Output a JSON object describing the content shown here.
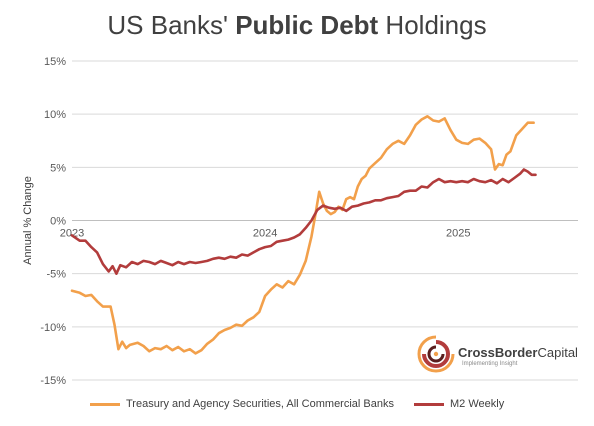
{
  "title": {
    "prefix": "US Banks' ",
    "emphasis": "Public Debt",
    "suffix": " Holdings"
  },
  "brand": {
    "name_bold": "CrossBorder",
    "name_rest": "Capital",
    "tagline": "Implementing Insight"
  },
  "colors": {
    "treasury": "#F2A04B",
    "m2": "#B23C3C",
    "grid": "#D9D9D9",
    "zero_line": "#BFBFBF"
  },
  "chart_data": {
    "type": "line",
    "title": "US Banks' Public Debt Holdings",
    "xlabel": "",
    "ylabel": "Annual % Change",
    "ylim": [
      -15,
      15
    ],
    "yticks": [
      15,
      10,
      5,
      0,
      -5,
      -10,
      -15
    ],
    "ytick_labels": [
      "15%",
      "10%",
      "5%",
      "0%",
      "-5%",
      "-10%",
      "-15%"
    ],
    "xlim": [
      2023.0,
      2025.62
    ],
    "xticks": [
      2023,
      2024,
      2025
    ],
    "xtick_labels": [
      "2023",
      "2024",
      "2025"
    ],
    "grid": true,
    "legend_position": "bottom",
    "series": [
      {
        "name": "Treasury and Agency Securities, All Commercial Banks",
        "color": "#F2A04B",
        "points": [
          [
            2023.0,
            -6.6
          ],
          [
            2023.04,
            -6.8
          ],
          [
            2023.07,
            -7.1
          ],
          [
            2023.1,
            -7.0
          ],
          [
            2023.13,
            -7.6
          ],
          [
            2023.16,
            -8.1
          ],
          [
            2023.2,
            -8.1
          ],
          [
            2023.22,
            -9.8
          ],
          [
            2023.24,
            -12.1
          ],
          [
            2023.26,
            -11.4
          ],
          [
            2023.28,
            -12.0
          ],
          [
            2023.3,
            -11.7
          ],
          [
            2023.34,
            -11.5
          ],
          [
            2023.37,
            -11.8
          ],
          [
            2023.4,
            -12.3
          ],
          [
            2023.43,
            -12.0
          ],
          [
            2023.46,
            -12.1
          ],
          [
            2023.49,
            -11.8
          ],
          [
            2023.52,
            -12.2
          ],
          [
            2023.55,
            -11.9
          ],
          [
            2023.58,
            -12.3
          ],
          [
            2023.61,
            -12.1
          ],
          [
            2023.64,
            -12.5
          ],
          [
            2023.67,
            -12.2
          ],
          [
            2023.7,
            -11.6
          ],
          [
            2023.73,
            -11.2
          ],
          [
            2023.76,
            -10.6
          ],
          [
            2023.79,
            -10.3
          ],
          [
            2023.82,
            -10.1
          ],
          [
            2023.85,
            -9.8
          ],
          [
            2023.88,
            -9.9
          ],
          [
            2023.91,
            -9.4
          ],
          [
            2023.94,
            -9.1
          ],
          [
            2023.97,
            -8.6
          ],
          [
            2024.0,
            -7.1
          ],
          [
            2024.03,
            -6.5
          ],
          [
            2024.06,
            -6.0
          ],
          [
            2024.09,
            -6.3
          ],
          [
            2024.12,
            -5.7
          ],
          [
            2024.15,
            -6.0
          ],
          [
            2024.18,
            -5.1
          ],
          [
            2024.21,
            -3.8
          ],
          [
            2024.24,
            -1.5
          ],
          [
            2024.26,
            0.5
          ],
          [
            2024.28,
            2.7
          ],
          [
            2024.3,
            1.6
          ],
          [
            2024.32,
            0.9
          ],
          [
            2024.34,
            0.6
          ],
          [
            2024.36,
            0.8
          ],
          [
            2024.38,
            1.3
          ],
          [
            2024.4,
            1.0
          ],
          [
            2024.42,
            2.0
          ],
          [
            2024.44,
            2.2
          ],
          [
            2024.46,
            2.0
          ],
          [
            2024.48,
            3.2
          ],
          [
            2024.5,
            3.9
          ],
          [
            2024.52,
            4.2
          ],
          [
            2024.54,
            4.9
          ],
          [
            2024.57,
            5.4
          ],
          [
            2024.6,
            5.9
          ],
          [
            2024.63,
            6.7
          ],
          [
            2024.66,
            7.2
          ],
          [
            2024.69,
            7.5
          ],
          [
            2024.72,
            7.2
          ],
          [
            2024.75,
            8.0
          ],
          [
            2024.78,
            9.0
          ],
          [
            2024.81,
            9.5
          ],
          [
            2024.84,
            9.8
          ],
          [
            2024.87,
            9.4
          ],
          [
            2024.9,
            9.3
          ],
          [
            2024.93,
            9.6
          ],
          [
            2024.96,
            8.5
          ],
          [
            2024.99,
            7.6
          ],
          [
            2025.02,
            7.3
          ],
          [
            2025.05,
            7.2
          ],
          [
            2025.08,
            7.6
          ],
          [
            2025.11,
            7.7
          ],
          [
            2025.14,
            7.3
          ],
          [
            2025.17,
            6.7
          ],
          [
            2025.19,
            4.8
          ],
          [
            2025.21,
            5.3
          ],
          [
            2025.23,
            5.2
          ],
          [
            2025.25,
            6.2
          ],
          [
            2025.27,
            6.5
          ],
          [
            2025.3,
            8.0
          ],
          [
            2025.33,
            8.6
          ],
          [
            2025.36,
            9.2
          ],
          [
            2025.39,
            9.2
          ]
        ]
      },
      {
        "name": "M2 Weekly",
        "color": "#B23C3C",
        "points": [
          [
            2023.0,
            -1.4
          ],
          [
            2023.04,
            -1.9
          ],
          [
            2023.07,
            -1.9
          ],
          [
            2023.1,
            -2.5
          ],
          [
            2023.13,
            -3.0
          ],
          [
            2023.16,
            -4.1
          ],
          [
            2023.19,
            -4.8
          ],
          [
            2023.21,
            -4.3
          ],
          [
            2023.23,
            -5.0
          ],
          [
            2023.25,
            -4.2
          ],
          [
            2023.28,
            -4.4
          ],
          [
            2023.31,
            -3.9
          ],
          [
            2023.34,
            -4.1
          ],
          [
            2023.37,
            -3.8
          ],
          [
            2023.4,
            -3.9
          ],
          [
            2023.43,
            -4.1
          ],
          [
            2023.46,
            -3.8
          ],
          [
            2023.49,
            -4.0
          ],
          [
            2023.52,
            -4.2
          ],
          [
            2023.55,
            -3.9
          ],
          [
            2023.58,
            -4.1
          ],
          [
            2023.61,
            -3.9
          ],
          [
            2023.64,
            -4.0
          ],
          [
            2023.67,
            -3.9
          ],
          [
            2023.7,
            -3.8
          ],
          [
            2023.73,
            -3.6
          ],
          [
            2023.76,
            -3.5
          ],
          [
            2023.79,
            -3.6
          ],
          [
            2023.82,
            -3.4
          ],
          [
            2023.85,
            -3.5
          ],
          [
            2023.88,
            -3.2
          ],
          [
            2023.91,
            -3.3
          ],
          [
            2023.94,
            -3.0
          ],
          [
            2023.97,
            -2.7
          ],
          [
            2024.0,
            -2.5
          ],
          [
            2024.03,
            -2.4
          ],
          [
            2024.06,
            -2.0
          ],
          [
            2024.09,
            -1.9
          ],
          [
            2024.12,
            -1.8
          ],
          [
            2024.15,
            -1.6
          ],
          [
            2024.18,
            -1.3
          ],
          [
            2024.21,
            -0.7
          ],
          [
            2024.24,
            0.0
          ],
          [
            2024.27,
            1.0
          ],
          [
            2024.3,
            1.4
          ],
          [
            2024.33,
            1.2
          ],
          [
            2024.36,
            1.1
          ],
          [
            2024.39,
            1.2
          ],
          [
            2024.42,
            0.9
          ],
          [
            2024.45,
            1.3
          ],
          [
            2024.48,
            1.4
          ],
          [
            2024.51,
            1.6
          ],
          [
            2024.54,
            1.7
          ],
          [
            2024.57,
            1.9
          ],
          [
            2024.6,
            1.9
          ],
          [
            2024.63,
            2.1
          ],
          [
            2024.66,
            2.2
          ],
          [
            2024.69,
            2.3
          ],
          [
            2024.72,
            2.7
          ],
          [
            2024.75,
            2.8
          ],
          [
            2024.78,
            2.8
          ],
          [
            2024.81,
            3.2
          ],
          [
            2024.84,
            3.1
          ],
          [
            2024.87,
            3.6
          ],
          [
            2024.9,
            3.9
          ],
          [
            2024.93,
            3.6
          ],
          [
            2024.96,
            3.7
          ],
          [
            2024.99,
            3.6
          ],
          [
            2025.02,
            3.7
          ],
          [
            2025.05,
            3.6
          ],
          [
            2025.08,
            3.9
          ],
          [
            2025.11,
            3.7
          ],
          [
            2025.14,
            3.6
          ],
          [
            2025.17,
            3.8
          ],
          [
            2025.2,
            3.5
          ],
          [
            2025.23,
            3.9
          ],
          [
            2025.26,
            3.6
          ],
          [
            2025.29,
            4.0
          ],
          [
            2025.32,
            4.4
          ],
          [
            2025.34,
            4.8
          ],
          [
            2025.36,
            4.6
          ],
          [
            2025.38,
            4.3
          ],
          [
            2025.4,
            4.3
          ]
        ]
      }
    ]
  }
}
